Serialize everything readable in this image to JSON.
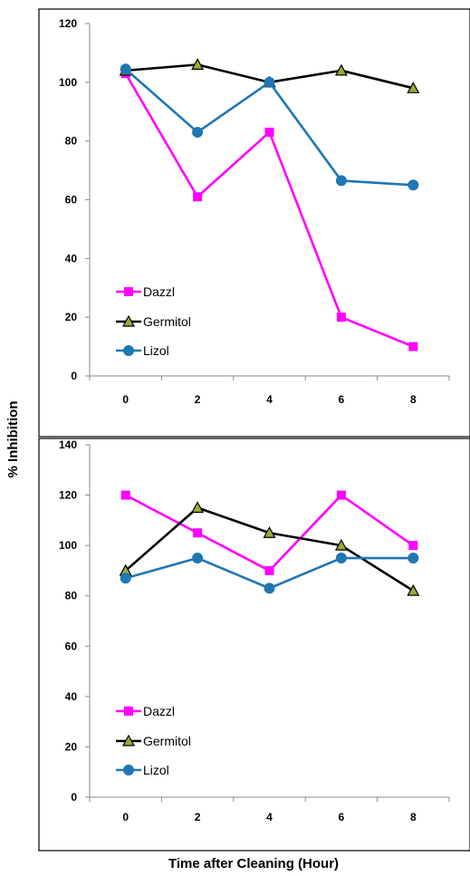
{
  "figure": {
    "ylabel": "% Inhibition",
    "xlabel": "Time after Cleaning (Hour)"
  },
  "colors": {
    "Dazzl": "#ff00ff",
    "Germitol": "#000000",
    "Lizol": "#1f77b4",
    "germitol_marker_fill": "#9aaa3a"
  },
  "chart_data": [
    {
      "type": "line",
      "x": [
        0,
        2,
        4,
        6,
        8
      ],
      "xticks": [
        "0",
        "2",
        "4",
        "6",
        "8"
      ],
      "yticks": [
        "0",
        "20",
        "40",
        "60",
        "80",
        "100",
        "120"
      ],
      "ylim": [
        0,
        120
      ],
      "grid": false,
      "legend_position": "bottom-left",
      "series": [
        {
          "name": "Dazzl",
          "marker": "square",
          "values": [
            103,
            61,
            83,
            20,
            10
          ]
        },
        {
          "name": "Germitol",
          "marker": "triangle",
          "values": [
            104,
            106,
            100,
            104,
            98
          ]
        },
        {
          "name": "Lizol",
          "marker": "circle",
          "values": [
            104.5,
            83,
            100,
            66.5,
            65
          ]
        }
      ]
    },
    {
      "type": "line",
      "x": [
        0,
        2,
        4,
        6,
        8
      ],
      "xticks": [
        "0",
        "2",
        "4",
        "6",
        "8"
      ],
      "yticks": [
        "0",
        "20",
        "40",
        "60",
        "80",
        "100",
        "120",
        "140"
      ],
      "ylim": [
        0,
        140
      ],
      "grid": false,
      "legend_position": "bottom-left",
      "series": [
        {
          "name": "Dazzl",
          "marker": "square",
          "values": [
            120,
            105,
            90,
            120,
            100
          ]
        },
        {
          "name": "Germitol",
          "marker": "triangle",
          "values": [
            90,
            115,
            105,
            100,
            82
          ]
        },
        {
          "name": "Lizol",
          "marker": "circle",
          "values": [
            87,
            95,
            83,
            95,
            95
          ]
        }
      ]
    }
  ]
}
